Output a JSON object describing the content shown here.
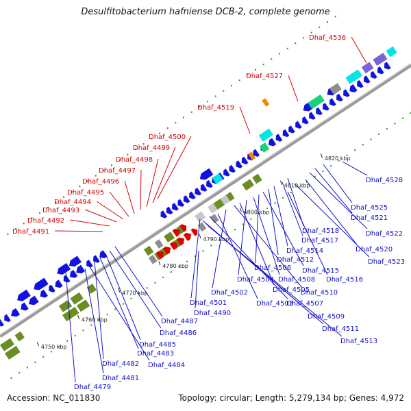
{
  "title": "Desulfitobacterium hafniense DCB-2, complete genome",
  "footer": {
    "accession": "Accession: NC_011830",
    "summary": "Topology: circular; Length: 5,279,134 bp; Genes: 4,972"
  },
  "colors": {
    "backbone": "#8c8c8c",
    "forward_label": "#d40000",
    "reverse_label": "#1010c8",
    "blue_cds": "#1212e0",
    "olive_cds": "#6b8e23",
    "red_cds": "#e00000",
    "cyan_cds": "#00e6e6",
    "green_cds": "#19d27a",
    "gray_cds": "#8e8e8e",
    "light_gray_cds": "#c8c8c8",
    "purple_cds": "#7b63d6",
    "orange_cds": "#f08a00",
    "magenta_cds": "#e020c0",
    "tick_green": "#2a8a2a"
  },
  "kbp_labels": [
    "4750 kbp",
    "4760 kbp",
    "4770 kbp",
    "4780 kbp",
    "4790 kbp",
    "4800 kbp",
    "4810 kbp",
    "4820 kbp"
  ],
  "forward_labels": [
    "Dhaf_4536",
    "Dhaf_4527",
    "Dhaf_4519",
    "Dhaf_4500",
    "Dhaf_4499",
    "Dhaf_4498",
    "Dhaf_4497",
    "Dhaf_4496",
    "Dhaf_4495",
    "Dhaf_4494",
    "Dhaf_4493",
    "Dhaf_4492",
    "Dhaf_4491"
  ],
  "reverse_labels": [
    "Dhaf_4528",
    "Dhaf_4525",
    "Dhaf_4521",
    "Dhaf_4522",
    "Dhaf_4518",
    "Dhaf_4520",
    "Dhaf_4517",
    "Dhaf_4523",
    "Dhaf_4514",
    "Dhaf_4512",
    "Dhaf_4515",
    "Dhaf_4506",
    "Dhaf_4508",
    "Dhaf_4516",
    "Dhaf_4504",
    "Dhaf_4505",
    "Dhaf_4510",
    "Dhaf_4502",
    "Dhaf_4503",
    "Dhaf_4507",
    "Dhaf_4501",
    "Dhaf_4490",
    "Dhaf_4509",
    "Dhaf_4487",
    "Dhaf_4486",
    "Dhaf_4511",
    "Dhaf_4485",
    "Dhaf_4513",
    "Dhaf_4483",
    "Dhaf_4482",
    "Dhaf_4484",
    "Dhaf_4481",
    "Dhaf_4479"
  ]
}
